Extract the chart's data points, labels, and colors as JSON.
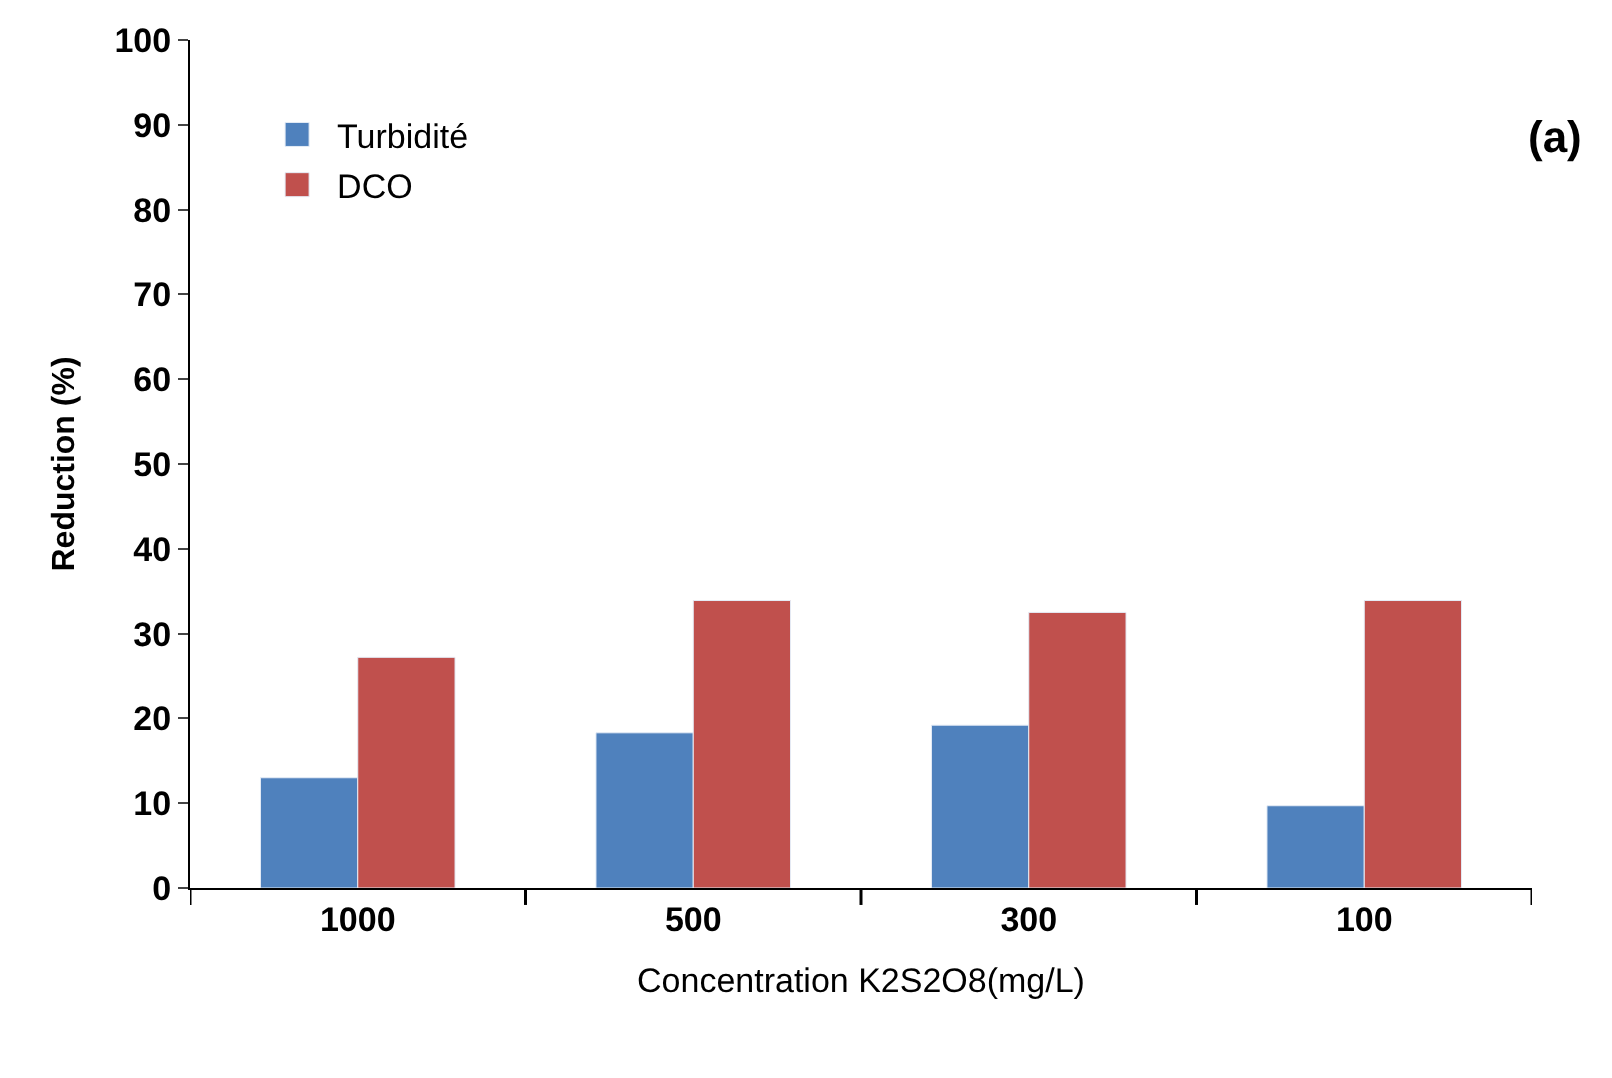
{
  "chart_data": {
    "type": "bar",
    "xlabel": "Concentration K2S2O8(mg/L)",
    "ylabel": "Reduction (%)",
    "categories": [
      "1000",
      "500",
      "300",
      "100"
    ],
    "series": [
      {
        "name": "Turbidité",
        "color": "#4f81bd",
        "values": [
          13.0,
          18.3,
          19.2,
          9.7
        ]
      },
      {
        "name": "DCO",
        "color": "#c0504d",
        "values": [
          27.2,
          33.9,
          32.5,
          33.9
        ]
      }
    ],
    "ylim": [
      0,
      100
    ],
    "yticks": [
      0,
      10,
      20,
      30,
      40,
      50,
      60,
      70,
      80,
      90,
      100
    ],
    "legend": "top left",
    "annotations": [
      "(a)"
    ]
  }
}
